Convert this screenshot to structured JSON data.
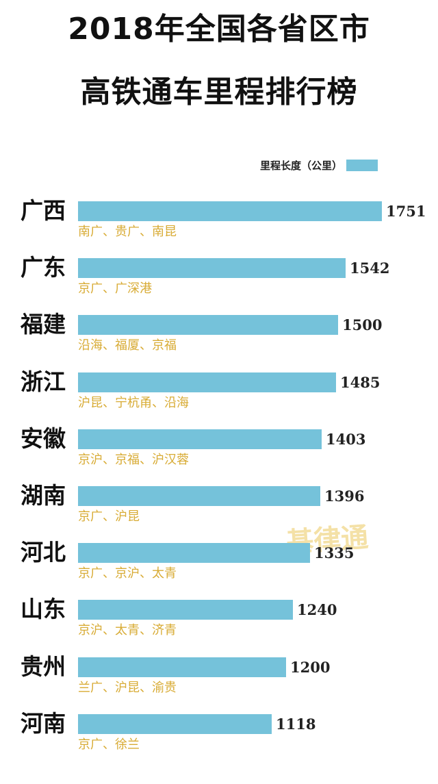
{
  "title_lines": [
    "2018年全国各省区市",
    "高铁通车里程排行榜"
  ],
  "watermark_text": "基律通",
  "colors": {
    "bar": "#75c2da",
    "route_text": "#d8ab34",
    "text": "#111111"
  },
  "chart_data": {
    "type": "bar",
    "orientation": "horizontal",
    "legend": {
      "label": "里程长度（公里）",
      "position": "top-right"
    },
    "categories": [
      "广西",
      "广东",
      "福建",
      "浙江",
      "安徽",
      "湖南",
      "河北",
      "山东",
      "贵州",
      "河南"
    ],
    "series": [
      {
        "name": "里程长度（公里）",
        "values": [
          1751,
          1542,
          1500,
          1485,
          1403,
          1396,
          1335,
          1240,
          1200,
          1118
        ]
      }
    ],
    "routes": [
      "南广、贵广、南昆",
      "京广、广深港",
      "沿海、福厦、京福",
      "沪昆、宁杭甬、沿海",
      "京沪、京福、沪汉蓉",
      "京广、沪昆",
      "京广、京沪、太青",
      "京沪、太青、济青",
      "兰广、沪昆、渝贵",
      "京广、徐兰"
    ],
    "xlim": [
      0,
      1751
    ],
    "grid": false
  }
}
